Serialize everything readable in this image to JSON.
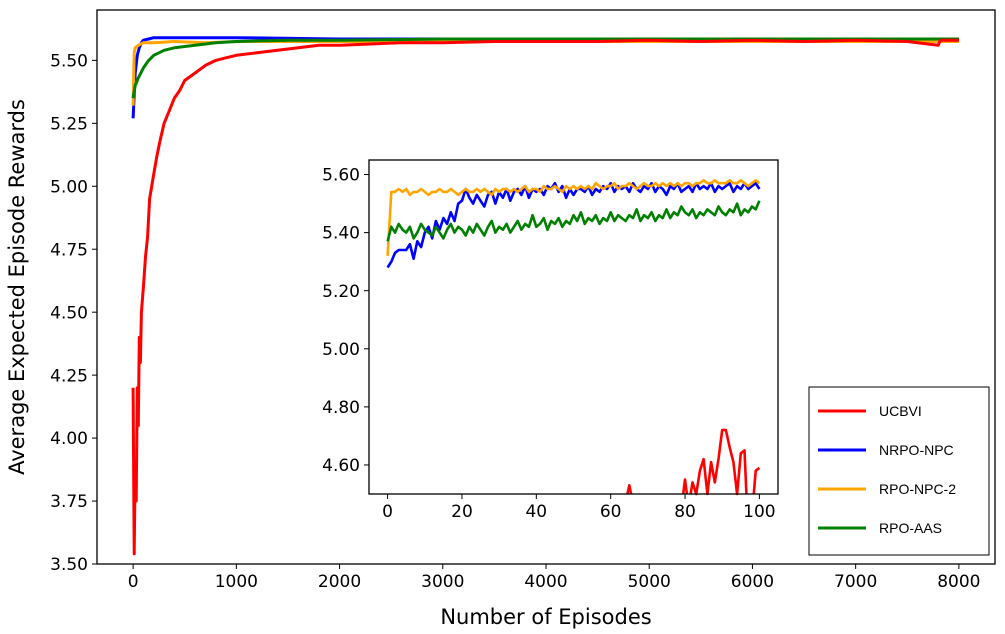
{
  "chart_data": [
    {
      "type": "line",
      "xlabel": "Number of Episodes",
      "ylabel": "Average Expected Episode Rewards",
      "xlim": [
        -350,
        8350
      ],
      "ylim": [
        3.5,
        5.7
      ],
      "xticks": [
        0,
        1000,
        2000,
        3000,
        4000,
        5000,
        6000,
        7000,
        8000
      ],
      "yticks": [
        3.5,
        3.75,
        4.0,
        4.25,
        4.5,
        4.75,
        5.0,
        5.25,
        5.5
      ],
      "ytick_labels": [
        "3.50",
        "3.75",
        "4.00",
        "4.25",
        "4.50",
        "4.75",
        "5.00",
        "5.25",
        "5.50"
      ],
      "grid": false,
      "legend_position": "lower-right",
      "series": [
        {
          "name": "UCBVI",
          "color": "#ff0000",
          "x": [
            0,
            10,
            20,
            30,
            40,
            50,
            60,
            70,
            80,
            100,
            120,
            140,
            160,
            180,
            200,
            230,
            260,
            300,
            350,
            400,
            450,
            500,
            600,
            700,
            800,
            900,
            1000,
            1200,
            1400,
            1600,
            1800,
            2000,
            2300,
            2600,
            3000,
            3500,
            4000,
            4500,
            5000,
            5500,
            6000,
            6500,
            7000,
            7500,
            7800,
            7820,
            8000
          ],
          "y": [
            4.2,
            3.54,
            3.9,
            3.75,
            4.2,
            4.05,
            4.4,
            4.3,
            4.5,
            4.6,
            4.72,
            4.8,
            4.95,
            5.0,
            5.05,
            5.12,
            5.18,
            5.25,
            5.3,
            5.35,
            5.38,
            5.42,
            5.45,
            5.48,
            5.5,
            5.51,
            5.52,
            5.53,
            5.54,
            5.55,
            5.56,
            5.56,
            5.565,
            5.57,
            5.57,
            5.575,
            5.575,
            5.575,
            5.58,
            5.575,
            5.58,
            5.575,
            5.58,
            5.575,
            5.56,
            5.58,
            5.58
          ]
        },
        {
          "name": "NRPO-NPC",
          "color": "#0000ff",
          "x": [
            0,
            20,
            40,
            60,
            80,
            100,
            150,
            200,
            300,
            500,
            1000,
            2000,
            4000,
            6000,
            8000
          ],
          "y": [
            5.27,
            5.45,
            5.52,
            5.55,
            5.57,
            5.58,
            5.585,
            5.59,
            5.59,
            5.59,
            5.59,
            5.585,
            5.585,
            5.585,
            5.585
          ]
        },
        {
          "name": "RPO-NPC-2",
          "color": "#ffa500",
          "x": [
            0,
            10,
            20,
            50,
            100,
            200,
            400,
            700,
            1000,
            2000,
            4000,
            6000,
            8000
          ],
          "y": [
            5.32,
            5.53,
            5.55,
            5.56,
            5.57,
            5.57,
            5.575,
            5.57,
            5.575,
            5.575,
            5.575,
            5.575,
            5.575
          ]
        },
        {
          "name": "RPO-AAS",
          "color": "#008000",
          "x": [
            0,
            20,
            50,
            100,
            150,
            200,
            300,
            400,
            600,
            800,
            1000,
            1500,
            2000,
            3000,
            4000,
            6000,
            8000
          ],
          "y": [
            5.35,
            5.4,
            5.43,
            5.47,
            5.5,
            5.52,
            5.54,
            5.55,
            5.56,
            5.57,
            5.575,
            5.58,
            5.58,
            5.585,
            5.585,
            5.585,
            5.585
          ]
        }
      ]
    },
    {
      "type": "line",
      "xlim": [
        -5,
        105
      ],
      "ylim": [
        4.5,
        5.65
      ],
      "xticks": [
        0,
        20,
        40,
        60,
        80,
        100
      ],
      "yticks": [
        4.6,
        4.8,
        5.0,
        5.2,
        5.4,
        5.6
      ],
      "ytick_labels": [
        "4.60",
        "4.80",
        "5.00",
        "5.20",
        "5.40",
        "5.60"
      ],
      "grid": false,
      "series": [
        {
          "name": "UCBVI",
          "color": "#ff0000",
          "segments": [
            {
              "x": [
                64.5,
                65,
                65.5
              ],
              "y": [
                4.5,
                4.53,
                4.5
              ]
            },
            {
              "x": [
                79.5,
                80,
                80.5
              ],
              "y": [
                4.5,
                4.55,
                4.5
              ]
            },
            {
              "x": [
                81.5,
                82,
                83,
                84,
                85,
                86,
                87,
                88,
                89,
                90,
                91,
                92,
                93,
                94,
                95,
                96,
                96.5
              ],
              "y": [
                4.5,
                4.54,
                4.5,
                4.58,
                4.62,
                4.5,
                4.61,
                4.54,
                4.62,
                4.72,
                4.72,
                4.66,
                4.61,
                4.5,
                4.64,
                4.65,
                4.5
              ]
            },
            {
              "x": [
                98.5,
                99,
                100
              ],
              "y": [
                4.5,
                4.58,
                4.59
              ]
            }
          ]
        },
        {
          "name": "NRPO-NPC",
          "color": "#0000ff",
          "x": [
            0,
            1,
            2,
            3,
            4,
            5,
            6,
            7,
            8,
            9,
            10,
            11,
            12,
            13,
            14,
            15,
            16,
            17,
            18,
            19,
            20,
            21,
            22,
            23,
            24,
            25,
            26,
            27,
            28,
            29,
            30,
            31,
            32,
            33,
            34,
            35,
            36,
            37,
            38,
            39,
            40,
            41,
            42,
            43,
            44,
            45,
            46,
            47,
            48,
            49,
            50,
            51,
            52,
            53,
            54,
            55,
            56,
            57,
            58,
            59,
            60,
            61,
            62,
            63,
            64,
            65,
            66,
            67,
            68,
            69,
            70,
            71,
            72,
            73,
            74,
            75,
            76,
            77,
            78,
            79,
            80,
            81,
            82,
            83,
            84,
            85,
            86,
            87,
            88,
            89,
            90,
            91,
            92,
            93,
            94,
            95,
            96,
            97,
            98,
            99,
            100
          ],
          "y": [
            5.28,
            5.3,
            5.33,
            5.34,
            5.34,
            5.34,
            5.36,
            5.31,
            5.37,
            5.35,
            5.4,
            5.42,
            5.38,
            5.44,
            5.41,
            5.45,
            5.43,
            5.47,
            5.44,
            5.5,
            5.51,
            5.55,
            5.52,
            5.5,
            5.53,
            5.51,
            5.49,
            5.53,
            5.54,
            5.5,
            5.54,
            5.52,
            5.55,
            5.51,
            5.54,
            5.55,
            5.53,
            5.56,
            5.52,
            5.55,
            5.54,
            5.55,
            5.53,
            5.56,
            5.55,
            5.57,
            5.54,
            5.56,
            5.52,
            5.55,
            5.53,
            5.55,
            5.55,
            5.54,
            5.56,
            5.53,
            5.55,
            5.54,
            5.56,
            5.55,
            5.57,
            5.54,
            5.56,
            5.55,
            5.56,
            5.54,
            5.57,
            5.55,
            5.54,
            5.56,
            5.55,
            5.57,
            5.54,
            5.56,
            5.55,
            5.53,
            5.56,
            5.55,
            5.57,
            5.54,
            5.55,
            5.56,
            5.54,
            5.57,
            5.55,
            5.56,
            5.55,
            5.57,
            5.54,
            5.56,
            5.55,
            5.56,
            5.57,
            5.54,
            5.56,
            5.55,
            5.57,
            5.55,
            5.56,
            5.57,
            5.55
          ]
        },
        {
          "name": "RPO-NPC-2",
          "color": "#ffa500",
          "x": [
            0,
            1,
            2,
            3,
            4,
            5,
            6,
            7,
            8,
            9,
            10,
            11,
            12,
            13,
            14,
            15,
            16,
            17,
            18,
            19,
            20,
            21,
            22,
            23,
            24,
            25,
            26,
            27,
            28,
            29,
            30,
            31,
            32,
            33,
            34,
            35,
            36,
            37,
            38,
            39,
            40,
            41,
            42,
            43,
            44,
            45,
            46,
            47,
            48,
            49,
            50,
            51,
            52,
            53,
            54,
            55,
            56,
            57,
            58,
            59,
            60,
            61,
            62,
            63,
            64,
            65,
            66,
            67,
            68,
            69,
            70,
            71,
            72,
            73,
            74,
            75,
            76,
            77,
            78,
            79,
            80,
            81,
            82,
            83,
            84,
            85,
            86,
            87,
            88,
            89,
            90,
            91,
            92,
            93,
            94,
            95,
            96,
            97,
            98,
            99,
            100
          ],
          "y": [
            5.32,
            5.54,
            5.54,
            5.55,
            5.54,
            5.55,
            5.53,
            5.54,
            5.54,
            5.55,
            5.54,
            5.53,
            5.54,
            5.54,
            5.55,
            5.54,
            5.54,
            5.55,
            5.54,
            5.53,
            5.54,
            5.55,
            5.54,
            5.54,
            5.55,
            5.54,
            5.55,
            5.54,
            5.53,
            5.55,
            5.54,
            5.55,
            5.55,
            5.54,
            5.55,
            5.54,
            5.55,
            5.56,
            5.54,
            5.55,
            5.55,
            5.54,
            5.56,
            5.55,
            5.55,
            5.56,
            5.55,
            5.54,
            5.56,
            5.55,
            5.56,
            5.55,
            5.56,
            5.55,
            5.56,
            5.55,
            5.57,
            5.56,
            5.55,
            5.56,
            5.56,
            5.57,
            5.55,
            5.56,
            5.56,
            5.57,
            5.56,
            5.55,
            5.56,
            5.57,
            5.56,
            5.56,
            5.57,
            5.56,
            5.57,
            5.56,
            5.57,
            5.56,
            5.57,
            5.56,
            5.57,
            5.57,
            5.56,
            5.57,
            5.57,
            5.58,
            5.57,
            5.57,
            5.58,
            5.57,
            5.57,
            5.57,
            5.58,
            5.57,
            5.57,
            5.58,
            5.57,
            5.56,
            5.57,
            5.58,
            5.57
          ]
        },
        {
          "name": "RPO-AAS",
          "color": "#008000",
          "x": [
            0,
            1,
            2,
            3,
            4,
            5,
            6,
            7,
            8,
            9,
            10,
            11,
            12,
            13,
            14,
            15,
            16,
            17,
            18,
            19,
            20,
            21,
            22,
            23,
            24,
            25,
            26,
            27,
            28,
            29,
            30,
            31,
            32,
            33,
            34,
            35,
            36,
            37,
            38,
            39,
            40,
            41,
            42,
            43,
            44,
            45,
            46,
            47,
            48,
            49,
            50,
            51,
            52,
            53,
            54,
            55,
            56,
            57,
            58,
            59,
            60,
            61,
            62,
            63,
            64,
            65,
            66,
            67,
            68,
            69,
            70,
            71,
            72,
            73,
            74,
            75,
            76,
            77,
            78,
            79,
            80,
            81,
            82,
            83,
            84,
            85,
            86,
            87,
            88,
            89,
            90,
            91,
            92,
            93,
            94,
            95,
            96,
            97,
            98,
            99,
            100
          ],
          "y": [
            5.37,
            5.42,
            5.4,
            5.43,
            5.41,
            5.4,
            5.42,
            5.38,
            5.4,
            5.43,
            5.41,
            5.4,
            5.39,
            5.42,
            5.4,
            5.38,
            5.41,
            5.43,
            5.4,
            5.42,
            5.41,
            5.39,
            5.42,
            5.4,
            5.43,
            5.41,
            5.39,
            5.42,
            5.44,
            5.4,
            5.42,
            5.41,
            5.43,
            5.4,
            5.42,
            5.44,
            5.41,
            5.43,
            5.42,
            5.46,
            5.42,
            5.43,
            5.45,
            5.41,
            5.44,
            5.43,
            5.45,
            5.42,
            5.44,
            5.43,
            5.46,
            5.44,
            5.47,
            5.43,
            5.45,
            5.44,
            5.46,
            5.43,
            5.45,
            5.44,
            5.47,
            5.44,
            5.46,
            5.45,
            5.44,
            5.46,
            5.45,
            5.48,
            5.44,
            5.46,
            5.45,
            5.47,
            5.44,
            5.46,
            5.45,
            5.48,
            5.45,
            5.47,
            5.46,
            5.49,
            5.47,
            5.46,
            5.48,
            5.45,
            5.47,
            5.46,
            5.48,
            5.47,
            5.46,
            5.49,
            5.47,
            5.46,
            5.48,
            5.47,
            5.5,
            5.46,
            5.48,
            5.47,
            5.49,
            5.48,
            5.51
          ]
        }
      ]
    }
  ]
}
